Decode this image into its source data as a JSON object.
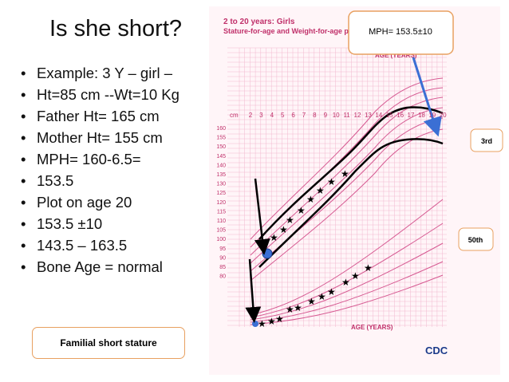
{
  "slide": {
    "title": "Is she short?",
    "bullets": [
      "Example: 3 Y – girl –",
      "Ht=85 cm --Wt=10 Kg",
      "Father Ht= 165 cm",
      "Mother Ht= 155 cm",
      "MPH= 160-6.5=",
      "153.5",
      "Plot on age 20",
      "153.5 ±10",
      "143.5 – 163.5",
      "Bone Age = normal"
    ],
    "footer_box": "Familial short stature",
    "growth_chart": {
      "header": "2 to 20 years: Girls",
      "subheader": "Stature-for-age and Weight-for-age perc",
      "age_axis_title": "AGE (YEARS)",
      "unit": "cm",
      "ages": [
        "2",
        "3",
        "4",
        "5",
        "6",
        "7",
        "8",
        "9",
        "10",
        "11",
        "12",
        "13",
        "14",
        "15",
        "16",
        "17",
        "18",
        "19",
        "20"
      ],
      "stature_labels": [
        "160",
        "155",
        "150",
        "145",
        "140",
        "135",
        "130",
        "125",
        "120",
        "115",
        "110",
        "105",
        "100",
        "95",
        "90",
        "85",
        "80"
      ],
      "logo": "CDC"
    },
    "callouts": {
      "mph": "MPH= 153.5±10",
      "third": "3rd",
      "fiftieth": "50th"
    }
  }
}
